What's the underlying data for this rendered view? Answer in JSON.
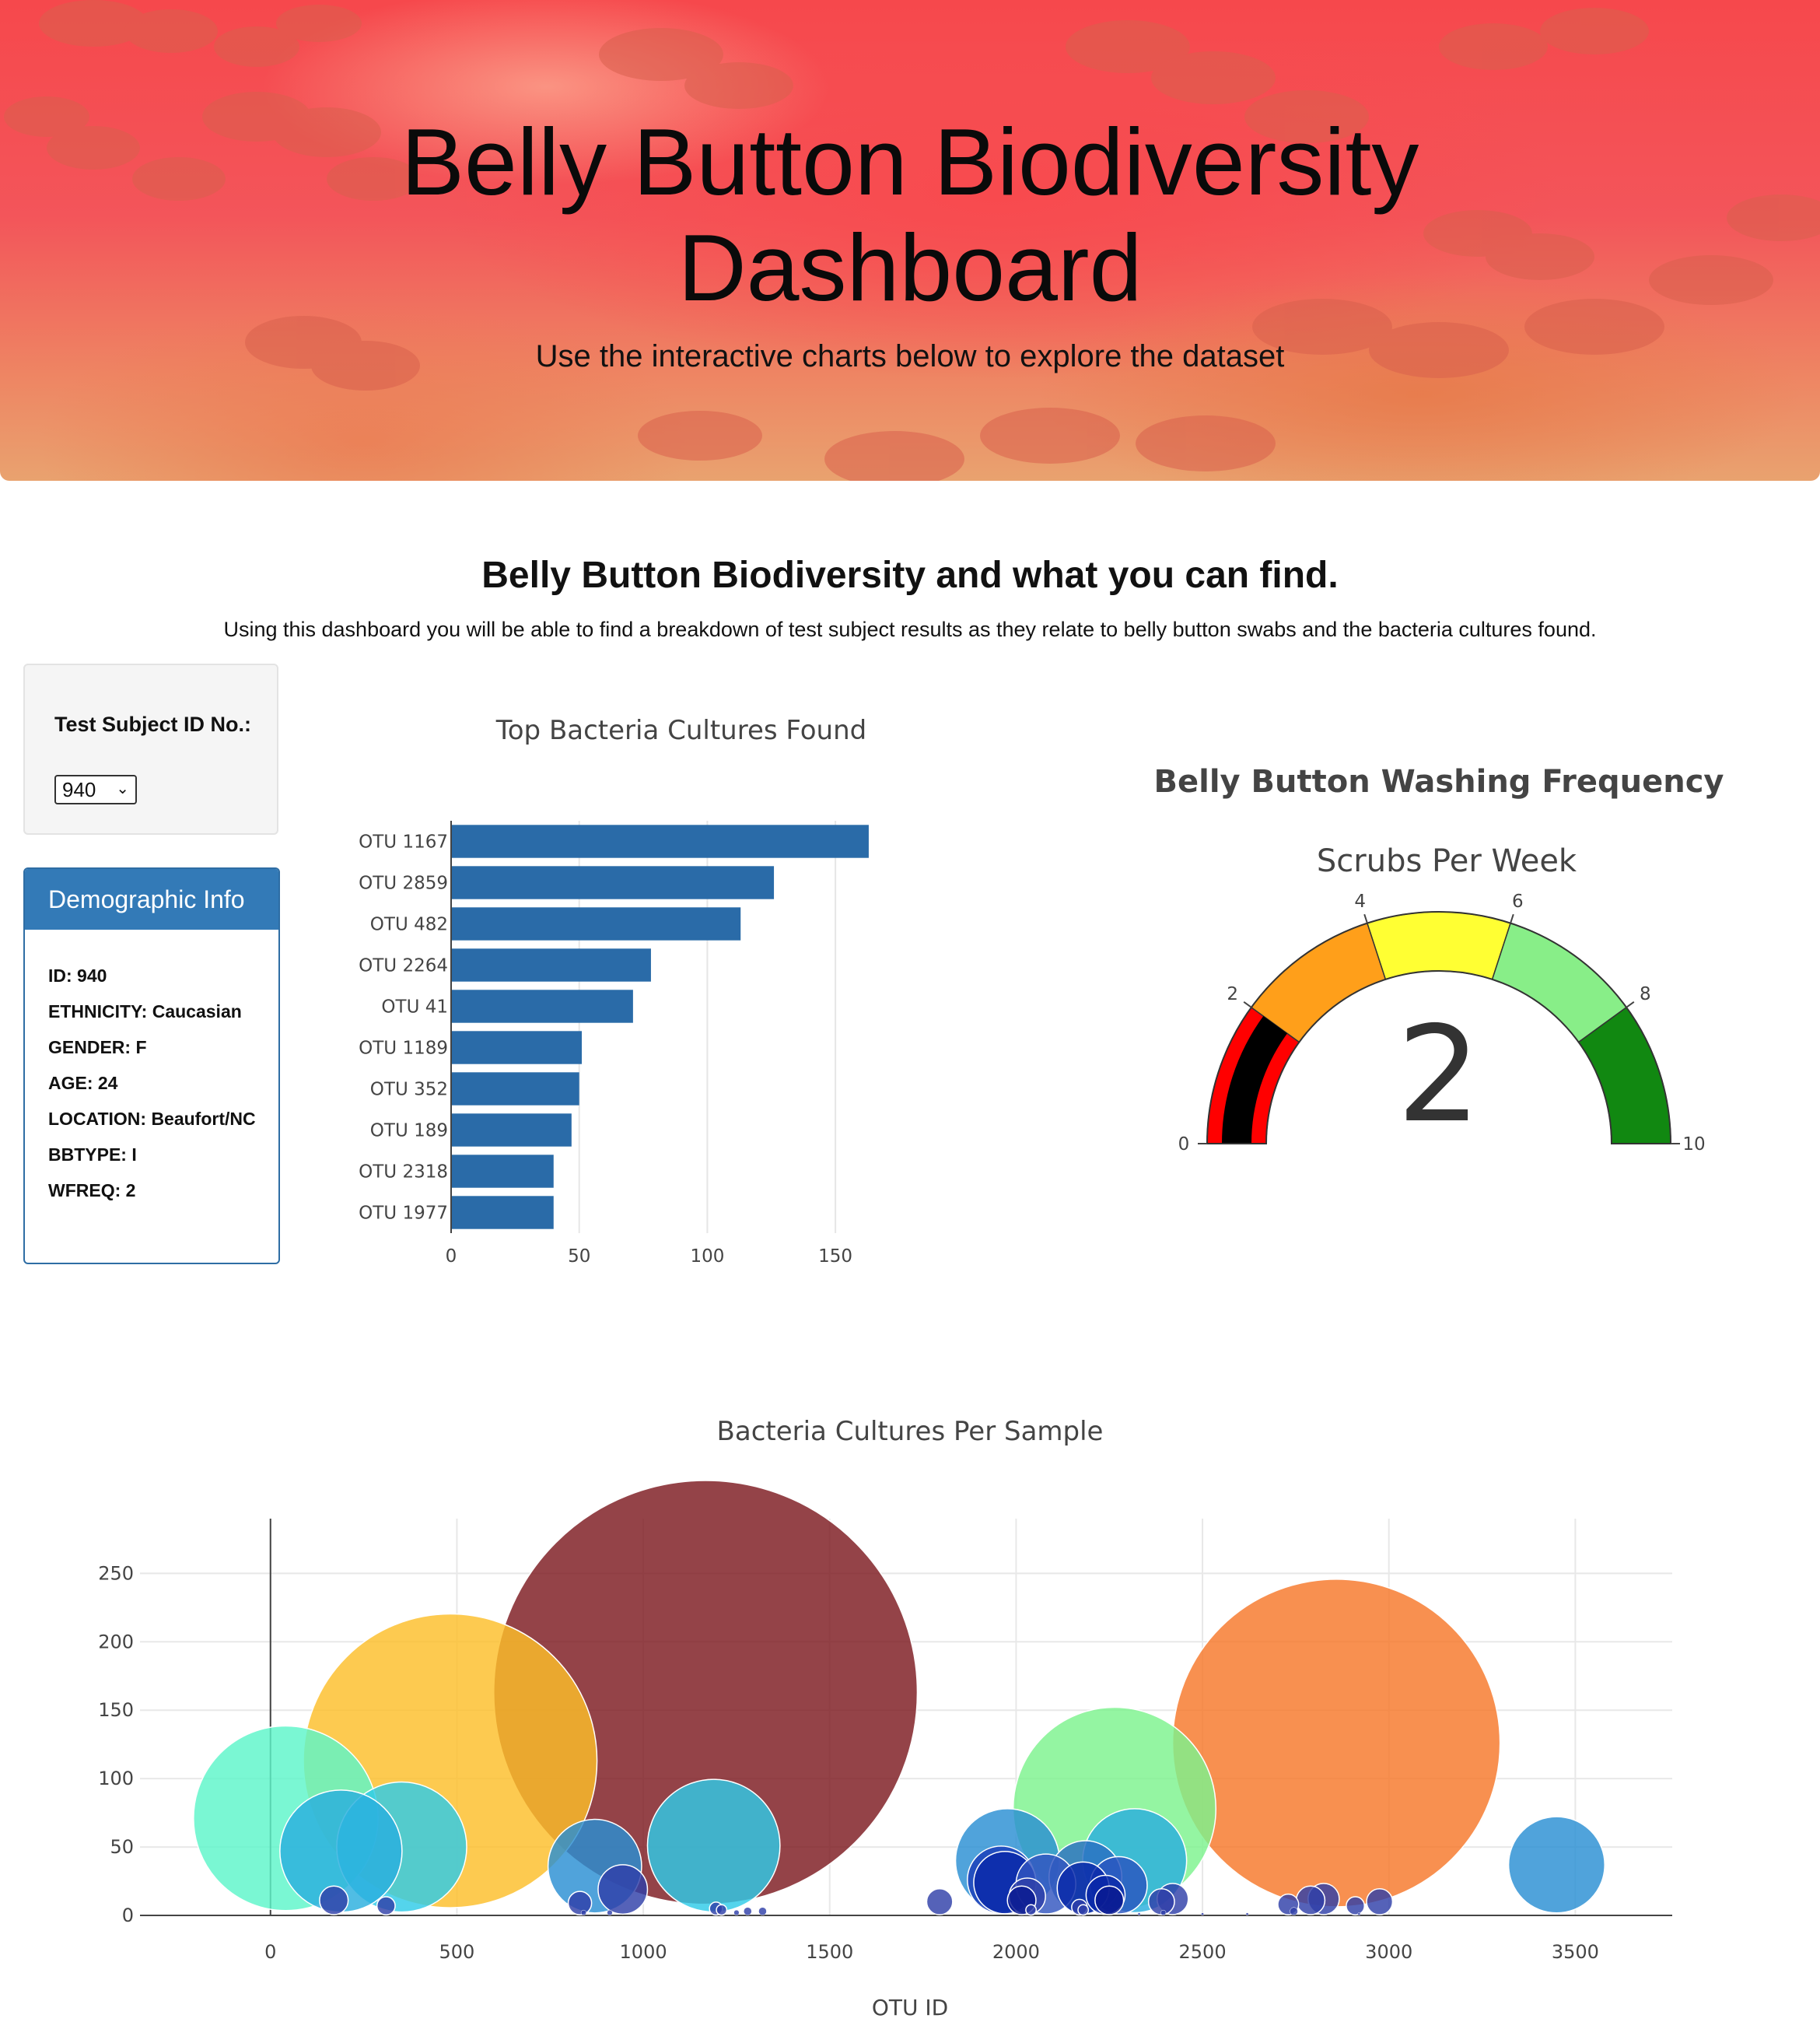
{
  "header": {
    "title_line1": "Belly Button Biodiversity",
    "title_line2": "Dashboard",
    "subtitle": "Use the interactive charts below to explore the dataset"
  },
  "intro": {
    "title": "Belly Button Biodiversity and what you can find.",
    "description": "Using this dashboard you will be able to find a breakdown of test subject results as they relate to belly button swabs and the bacteria cultures found."
  },
  "selector": {
    "label": "Test Subject ID No.:",
    "selected": "940"
  },
  "demographics": {
    "title": "Demographic Info",
    "rows": [
      "ID: 940",
      "ETHNICITY: Caucasian",
      "GENDER: F",
      "AGE: 24",
      "LOCATION: Beaufort/NC",
      "BBTYPE: I",
      "WFREQ: 2"
    ]
  },
  "chart_data": [
    {
      "type": "bar",
      "orientation": "horizontal",
      "title": "Top Bacteria Cultures Found",
      "categories": [
        "OTU 1167",
        "OTU 2859",
        "OTU 482",
        "OTU 2264",
        "OTU 41",
        "OTU 1189",
        "OTU 352",
        "OTU 189",
        "OTU 2318",
        "OTU 1977"
      ],
      "values": [
        163,
        126,
        113,
        78,
        71,
        51,
        50,
        47,
        40,
        40
      ],
      "xlim": [
        0,
        170
      ],
      "xticks": [
        0,
        50,
        100,
        150
      ],
      "color": "#2a6ba8",
      "grid": true
    },
    {
      "type": "gauge",
      "title": "Belly Button Washing Frequency",
      "subtitle": "Scrubs Per Week",
      "value": 2,
      "range": [
        0,
        10
      ],
      "ticks": [
        0,
        2,
        4,
        6,
        8,
        10
      ],
      "steps": [
        {
          "range": [
            0,
            2
          ],
          "color": "#ff0000"
        },
        {
          "range": [
            2,
            4
          ],
          "color": "#ff9f1a"
        },
        {
          "range": [
            4,
            6
          ],
          "color": "#ffff33"
        },
        {
          "range": [
            6,
            8
          ],
          "color": "#88ee88"
        },
        {
          "range": [
            8,
            10
          ],
          "color": "#118811"
        }
      ],
      "bar_color": "#000000"
    },
    {
      "type": "scatter",
      "subtype": "bubble",
      "title": "Bacteria Cultures Per Sample",
      "xlabel": "OTU ID",
      "xlim": [
        -350,
        3760
      ],
      "ylim": [
        0,
        290
      ],
      "xticks": [
        0,
        500,
        1000,
        1500,
        2000,
        2500,
        3000,
        3500
      ],
      "yticks": [
        0,
        50,
        100,
        150,
        200,
        250
      ],
      "grid": true,
      "points": [
        {
          "x": 1167,
          "y": 163,
          "color": "#7d1a20"
        },
        {
          "x": 2859,
          "y": 126,
          "color": "#f7772a"
        },
        {
          "x": 482,
          "y": 113,
          "color": "#fcbe2a"
        },
        {
          "x": 2264,
          "y": 78,
          "color": "#7df38e"
        },
        {
          "x": 41,
          "y": 71,
          "color": "#5df5c9"
        },
        {
          "x": 1189,
          "y": 51,
          "color": "#2ecbe8"
        },
        {
          "x": 352,
          "y": 50,
          "color": "#2ecbe8"
        },
        {
          "x": 189,
          "y": 47,
          "color": "#2aaede"
        },
        {
          "x": 2318,
          "y": 40,
          "color": "#2aaede"
        },
        {
          "x": 1977,
          "y": 40,
          "color": "#2a8fd3"
        },
        {
          "x": 3450,
          "y": 37,
          "color": "#2a8fd3"
        },
        {
          "x": 870,
          "y": 36,
          "color": "#2a8fd3"
        },
        {
          "x": 2186,
          "y": 28,
          "color": "#2a6fc2"
        },
        {
          "x": 1960,
          "y": 26,
          "color": "#1a3db8"
        },
        {
          "x": 2080,
          "y": 23,
          "color": "#3256c0"
        },
        {
          "x": 2275,
          "y": 22,
          "color": "#2a56c0"
        },
        {
          "x": 1970,
          "y": 24,
          "color": "#0a28a8"
        },
        {
          "x": 2180,
          "y": 20,
          "color": "#0a28a8"
        },
        {
          "x": 945,
          "y": 19,
          "color": "#2f3fa8"
        },
        {
          "x": 2240,
          "y": 15,
          "color": "#0a28a8"
        },
        {
          "x": 2030,
          "y": 14,
          "color": "#2f3fa8"
        },
        {
          "x": 2420,
          "y": 12,
          "color": "#2f3fa8"
        },
        {
          "x": 2825,
          "y": 12,
          "color": "#2f3fa8"
        },
        {
          "x": 2790,
          "y": 11,
          "color": "#2f3fa8"
        },
        {
          "x": 2390,
          "y": 10,
          "color": "#2f3fa8"
        },
        {
          "x": 2250,
          "y": 11,
          "color": "#0a1a90"
        },
        {
          "x": 2015,
          "y": 11,
          "color": "#0a1a90"
        },
        {
          "x": 170,
          "y": 11,
          "color": "#2f3fa8"
        },
        {
          "x": 1795,
          "y": 10,
          "color": "#2f3fa8"
        },
        {
          "x": 2975,
          "y": 10,
          "color": "#2f3fa8"
        },
        {
          "x": 830,
          "y": 9,
          "color": "#2f3fa8"
        },
        {
          "x": 2730,
          "y": 8,
          "color": "#2f3fa8"
        },
        {
          "x": 2910,
          "y": 7,
          "color": "#2f3fa8"
        },
        {
          "x": 310,
          "y": 7,
          "color": "#2f3fa8"
        },
        {
          "x": 2170,
          "y": 6,
          "color": "#2f3fa8"
        },
        {
          "x": 1195,
          "y": 5,
          "color": "#2f3fa8"
        },
        {
          "x": 1210,
          "y": 4,
          "color": "#2f3fa8"
        },
        {
          "x": 2040,
          "y": 4,
          "color": "#2f3fa8"
        },
        {
          "x": 2180,
          "y": 4,
          "color": "#2f3fa8"
        },
        {
          "x": 1280,
          "y": 3,
          "color": "#2f3fa8"
        },
        {
          "x": 1320,
          "y": 3,
          "color": "#2f3fa8"
        },
        {
          "x": 2745,
          "y": 3,
          "color": "#2f3fa8"
        },
        {
          "x": 840,
          "y": 2,
          "color": "#2f3fa8"
        },
        {
          "x": 910,
          "y": 2,
          "color": "#2f3fa8"
        },
        {
          "x": 1250,
          "y": 2,
          "color": "#2f3fa8"
        },
        {
          "x": 2395,
          "y": 2,
          "color": "#2f3fa8"
        },
        {
          "x": 2620,
          "y": 1,
          "color": "#2f3fa8"
        },
        {
          "x": 2500,
          "y": 1,
          "color": "#2f3fa8"
        },
        {
          "x": 2330,
          "y": 1,
          "color": "#2f3fa8"
        },
        {
          "x": 2920,
          "y": 1,
          "color": "#2f3fa8"
        }
      ]
    }
  ]
}
